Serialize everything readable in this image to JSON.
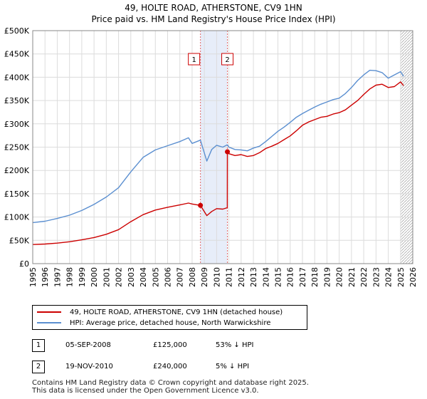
{
  "chart_data": {
    "type": "line",
    "title": "49, HOLTE ROAD, ATHERSTONE, CV9 1HN",
    "subtitle": "Price paid vs. HM Land Registry's House Price Index (HPI)",
    "xlim": [
      1995,
      2026
    ],
    "ylim": [
      0,
      500000
    ],
    "x_ticks": [
      1995,
      1996,
      1997,
      1998,
      1999,
      2000,
      2001,
      2002,
      2003,
      2004,
      2005,
      2006,
      2007,
      2008,
      2009,
      2010,
      2011,
      2012,
      2013,
      2014,
      2015,
      2016,
      2017,
      2018,
      2019,
      2020,
      2021,
      2022,
      2023,
      2024,
      2025,
      2026
    ],
    "y_ticks": [
      0,
      50000,
      100000,
      150000,
      200000,
      250000,
      300000,
      350000,
      400000,
      450000,
      500000
    ],
    "y_tick_labels": [
      "£0",
      "£50K",
      "£100K",
      "£150K",
      "£200K",
      "£250K",
      "£300K",
      "£350K",
      "£400K",
      "£450K",
      "£500K"
    ],
    "grid": true,
    "series": [
      {
        "name": "49, HOLTE ROAD, ATHERSTONE, CV9 1HN (detached house)",
        "color": "#cc0000",
        "x": [
          1995.0,
          1996.0,
          1997.0,
          1998.0,
          1999.0,
          2000.0,
          2001.0,
          2002.0,
          2003.0,
          2004.0,
          2005.0,
          2006.0,
          2007.0,
          2007.7,
          2008.0,
          2008.68,
          2009.2,
          2009.6,
          2010.0,
          2010.5,
          2010.87,
          2010.88,
          2011.0,
          2011.5,
          2012.0,
          2012.5,
          2013.0,
          2013.5,
          2014.0,
          2014.5,
          2015.0,
          2015.5,
          2016.0,
          2016.5,
          2017.0,
          2017.5,
          2018.0,
          2018.5,
          2019.0,
          2019.5,
          2020.0,
          2020.5,
          2021.0,
          2021.5,
          2022.0,
          2022.5,
          2023.0,
          2023.5,
          2024.0,
          2024.5,
          2025.0,
          2025.25
        ],
        "y": [
          41000,
          42000,
          44000,
          47000,
          51000,
          56000,
          63000,
          73000,
          90000,
          105000,
          115000,
          121000,
          126000,
          130000,
          128000,
          125000,
          103000,
          112000,
          118000,
          117000,
          120000,
          240000,
          236000,
          232000,
          234000,
          230000,
          232000,
          238000,
          247000,
          252000,
          258000,
          266000,
          274000,
          285000,
          297000,
          304000,
          309000,
          314000,
          316000,
          321000,
          324000,
          330000,
          340000,
          350000,
          363000,
          375000,
          383000,
          385000,
          378000,
          380000,
          390000,
          382000
        ]
      },
      {
        "name": "HPI: Average price, detached house, North Warwickshire",
        "color": "#5b8fd0",
        "x": [
          1995.0,
          1996.0,
          1997.0,
          1998.0,
          1999.0,
          2000.0,
          2001.0,
          2002.0,
          2003.0,
          2004.0,
          2005.0,
          2006.0,
          2007.0,
          2007.7,
          2008.0,
          2008.68,
          2009.2,
          2009.6,
          2010.0,
          2010.5,
          2010.87,
          2011.0,
          2011.5,
          2012.0,
          2012.5,
          2013.0,
          2013.5,
          2014.0,
          2014.5,
          2015.0,
          2015.5,
          2016.0,
          2016.5,
          2017.0,
          2017.5,
          2018.0,
          2018.5,
          2019.0,
          2019.5,
          2020.0,
          2020.5,
          2021.0,
          2021.5,
          2022.0,
          2022.5,
          2023.0,
          2023.5,
          2024.0,
          2024.5,
          2025.0,
          2025.25
        ],
        "y": [
          88000,
          91000,
          97000,
          104000,
          114000,
          127000,
          143000,
          163000,
          197000,
          228000,
          244000,
          253000,
          262000,
          270000,
          258000,
          265000,
          220000,
          245000,
          254000,
          250000,
          255000,
          250000,
          245000,
          244000,
          242000,
          248000,
          252000,
          262000,
          273000,
          284000,
          293000,
          303000,
          314000,
          322000,
          329000,
          336000,
          342000,
          347000,
          352000,
          355000,
          365000,
          378000,
          393000,
          405000,
          415000,
          414000,
          410000,
          398000,
          405000,
          412000,
          402000
        ]
      }
    ],
    "transactions": [
      {
        "id": "1",
        "date": "05-SEP-2008",
        "x": 2008.68,
        "price": "£125,000",
        "value": 125000,
        "hpi": "53% ↓ HPI"
      },
      {
        "id": "2",
        "date": "19-NOV-2010",
        "x": 2010.88,
        "price": "£240,000",
        "value": 240000,
        "hpi": "5% ↓ HPI"
      }
    ],
    "forecast_start": 2025.0,
    "shaded_range": [
      2008.68,
      2010.88
    ]
  },
  "footer": {
    "line1": "Contains HM Land Registry data © Crown copyright and database right 2025.",
    "line2": "This data is licensed under the Open Government Licence v3.0."
  }
}
